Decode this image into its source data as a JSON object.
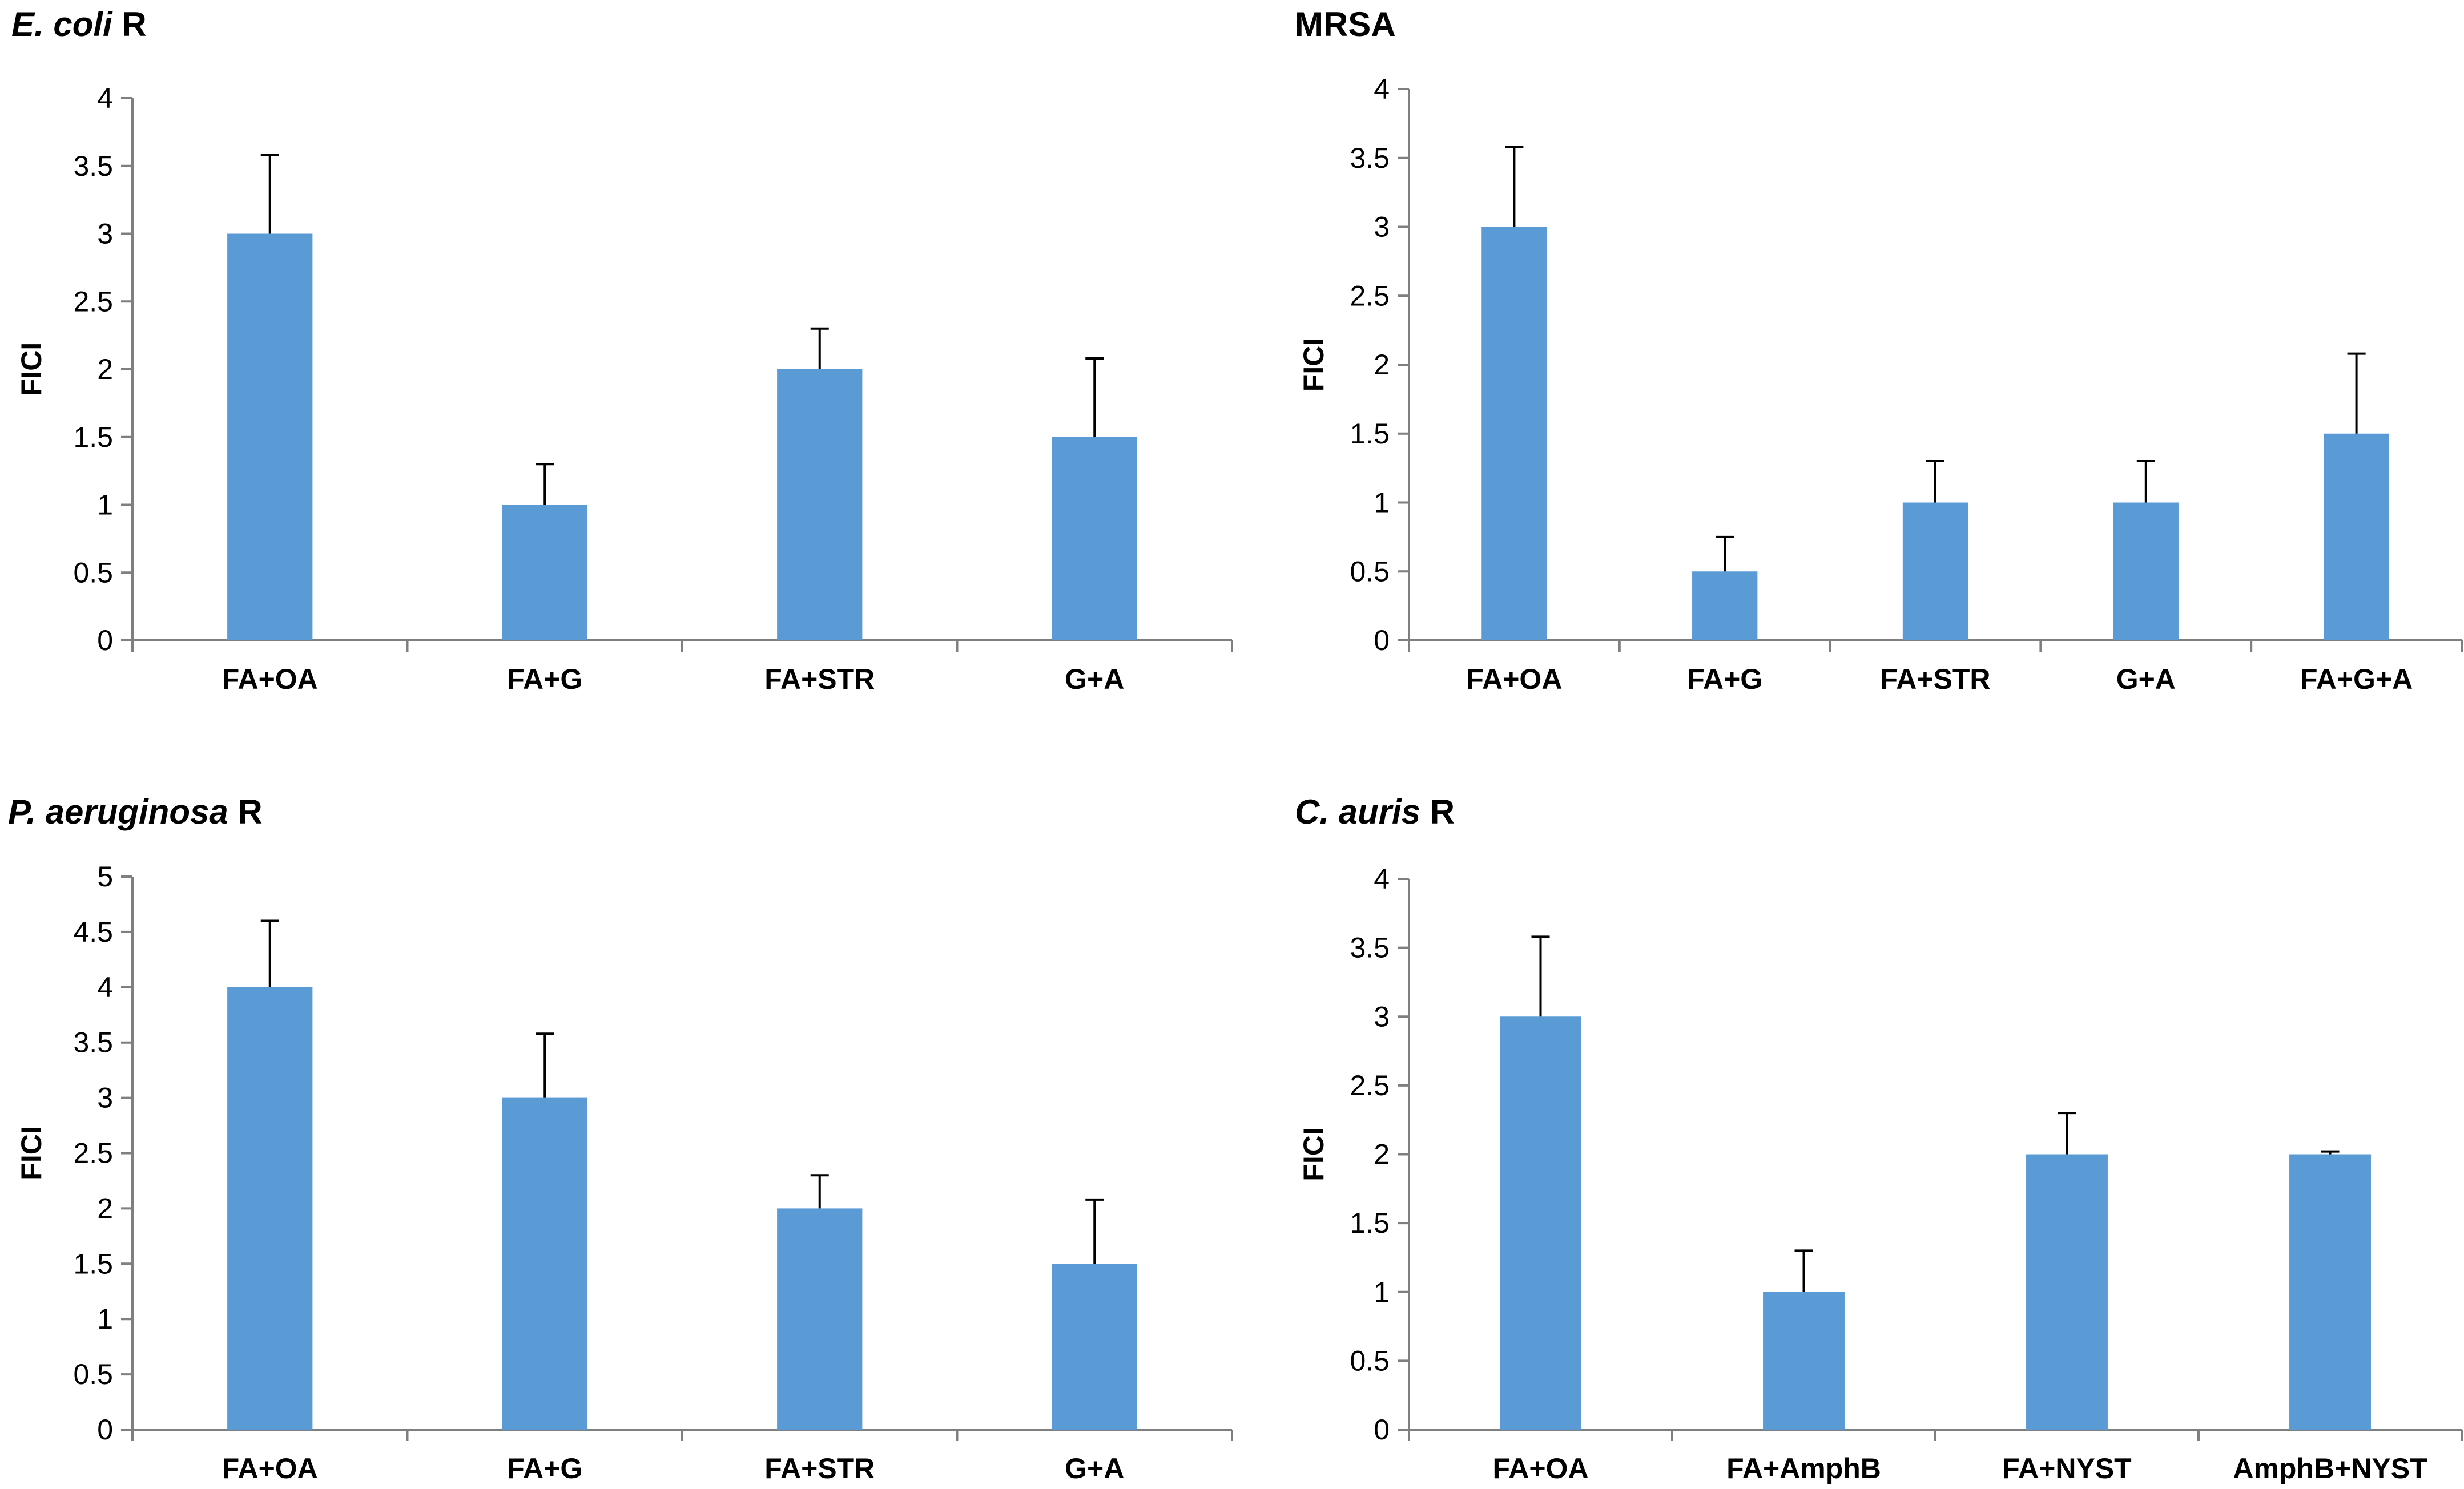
{
  "colors": {
    "bar": "#5B9BD5",
    "axis": "#7f7f7f",
    "error": "#000000",
    "text": "#000000"
  },
  "chart_data": [
    {
      "type": "bar",
      "title_italic": "E. coli",
      "title_rest": " R",
      "ylabel": "FICI",
      "xlabel": "",
      "ylim": [
        0,
        4
      ],
      "ytick_labels": [
        "0",
        "0.5",
        "1",
        "1.5",
        "2",
        "2.5",
        "3",
        "3.5",
        "4"
      ],
      "categories": [
        "FA+OA",
        "FA+G",
        "FA+STR",
        "G+A"
      ],
      "values": [
        3,
        1,
        2,
        1.5
      ],
      "errors": [
        0.58,
        0.3,
        0.3,
        0.58
      ]
    },
    {
      "type": "bar",
      "title_italic": "",
      "title_rest": "MRSA",
      "ylabel": "FICI",
      "xlabel": "",
      "ylim": [
        0,
        4
      ],
      "ytick_labels": [
        "0",
        "0.5",
        "1",
        "1.5",
        "2",
        "2.5",
        "3",
        "3.5",
        "4"
      ],
      "categories": [
        "FA+OA",
        "FA+G",
        "FA+STR",
        "G+A",
        "FA+G+A"
      ],
      "values": [
        3,
        0.5,
        1,
        1,
        1.5
      ],
      "errors": [
        0.58,
        0.25,
        0.3,
        0.3,
        0.58
      ]
    },
    {
      "type": "bar",
      "title_italic": "P. aeruginosa",
      "title_rest": " R",
      "ylabel": "FICI",
      "xlabel": "",
      "ylim": [
        0,
        5
      ],
      "ytick_labels": [
        "0",
        "0.5",
        "1",
        "1.5",
        "2",
        "2.5",
        "3",
        "3.5",
        "4",
        "4.5",
        "5"
      ],
      "categories": [
        "FA+OA",
        "FA+G",
        "FA+STR",
        "G+A"
      ],
      "values": [
        4,
        3,
        2,
        1.5
      ],
      "errors": [
        0.6,
        0.58,
        0.3,
        0.58
      ]
    },
    {
      "type": "bar",
      "title_italic": "C. auris",
      "title_rest": " R",
      "ylabel": "FICI",
      "xlabel": "",
      "ylim": [
        0,
        4
      ],
      "ytick_labels": [
        "0",
        "0.5",
        "1",
        "1.5",
        "2",
        "2.5",
        "3",
        "3.5",
        "4"
      ],
      "categories": [
        "FA+OA",
        "FA+AmphB",
        "FA+NYST",
        "AmphB+NYST"
      ],
      "values": [
        3,
        1,
        2,
        2
      ],
      "errors": [
        0.58,
        0.3,
        0.3,
        0.02
      ]
    }
  ]
}
